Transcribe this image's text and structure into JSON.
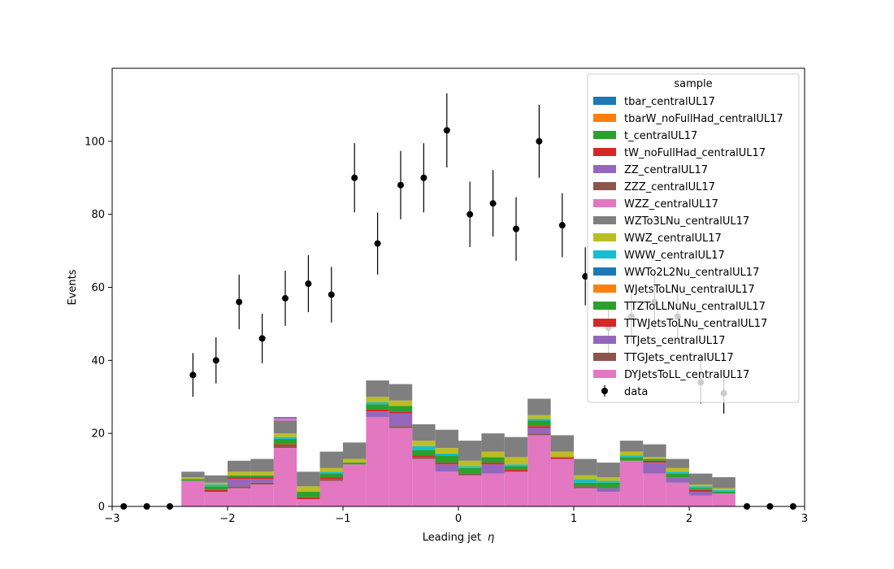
{
  "chart_data": {
    "type": "bar",
    "stacked": true,
    "xlabel": "Leading jet",
    "xlabel_symbol": "η",
    "ylabel": "Events",
    "xlim": [
      -3,
      3
    ],
    "ylim": [
      0,
      120
    ],
    "xticks": [
      -3,
      -2,
      -1,
      0,
      1,
      2,
      3
    ],
    "xtick_labels": [
      "−3",
      "−2",
      "−1",
      "0",
      "1",
      "2",
      "3"
    ],
    "yticks": [
      0,
      20,
      40,
      60,
      80,
      100
    ],
    "yticks_labels": [
      "0",
      "20",
      "40",
      "60",
      "80",
      "100"
    ],
    "grid": false,
    "legend": {
      "title": "sample",
      "placement": "top-right"
    },
    "bin_edges": [
      -3.0,
      -2.8,
      -2.6,
      -2.4,
      -2.2,
      -2.0,
      -1.8,
      -1.6,
      -1.4,
      -1.2,
      -1.0,
      -0.8,
      -0.6,
      -0.4,
      -0.2,
      0.0,
      0.2,
      0.4,
      0.6,
      0.8,
      1.0,
      1.2,
      1.4,
      1.6,
      1.8,
      2.0,
      2.2,
      2.4,
      2.6,
      2.8,
      3.0
    ],
    "series": [
      {
        "name": "DYJetsToLL_centralUL17",
        "color": "#e377c2",
        "values": [
          0,
          0,
          0,
          7,
          4,
          5,
          6,
          16,
          2,
          7,
          11.5,
          24.5,
          21.5,
          13,
          9.5,
          8.5,
          9,
          9.5,
          19.5,
          13,
          5,
          4,
          12.5,
          9,
          6.5,
          3,
          3.5,
          0,
          0,
          0
        ]
      },
      {
        "name": "TTGJets_centralUL17",
        "color": "#8c564b",
        "values": [
          0,
          0,
          0,
          0,
          0,
          0.5,
          0.5,
          0.5,
          0,
          0.5,
          0,
          0,
          0.5,
          0.5,
          0,
          0.5,
          0,
          0,
          0.5,
          0,
          0.5,
          0,
          0,
          0,
          0,
          0,
          0,
          0,
          0,
          0
        ]
      },
      {
        "name": "TTJets_centralUL17",
        "color": "#9467bd",
        "values": [
          0,
          0,
          0,
          0,
          0,
          2,
          1,
          0,
          0,
          0,
          0,
          1.5,
          3.5,
          0,
          2,
          0,
          2.5,
          0,
          1.5,
          0,
          0,
          1,
          0,
          3,
          1.5,
          1,
          0,
          0,
          0,
          0
        ]
      },
      {
        "name": "TTWJetsToLNu_centralUL17",
        "color": "#d62728",
        "values": [
          0,
          0,
          0,
          0,
          0.5,
          0.5,
          0.5,
          0.5,
          0.5,
          0.5,
          0,
          0.5,
          0.5,
          0.5,
          0.5,
          0,
          0.5,
          0.5,
          0.5,
          0.5,
          0,
          0,
          0,
          0.5,
          0,
          0.5,
          0,
          0,
          0,
          0
        ]
      },
      {
        "name": "TTZToLLNuNu_centralUL17",
        "color": "#2ca02c",
        "values": [
          0,
          0,
          0,
          0.5,
          1,
          0.5,
          0.5,
          1.5,
          1.5,
          1,
          0.5,
          1.5,
          1.5,
          1.5,
          2,
          1.5,
          1.5,
          1,
          1.5,
          0,
          1,
          1.5,
          1,
          0.5,
          1,
          0.5,
          0.5,
          0,
          0,
          0
        ]
      },
      {
        "name": "WJetsToLNu_centralUL17",
        "color": "#ff7f0e",
        "values": [
          0,
          0,
          0,
          0,
          0,
          0,
          0,
          0,
          0,
          0,
          0,
          0,
          0,
          0,
          0,
          0,
          0,
          0,
          0,
          0,
          0,
          0,
          0,
          0,
          0,
          0,
          0,
          0,
          0,
          0
        ]
      },
      {
        "name": "WWTo2L2Nu_centralUL17",
        "color": "#1f77b4",
        "values": [
          0,
          0,
          0,
          0,
          0,
          0,
          0,
          0,
          0,
          0,
          0,
          0,
          0,
          0,
          0,
          0,
          0,
          0,
          0,
          0,
          0,
          0,
          0,
          0,
          0,
          0,
          0,
          0,
          0,
          0
        ]
      },
      {
        "name": "WWW_centralUL17",
        "color": "#17becf",
        "values": [
          0,
          0,
          0,
          0,
          0.5,
          0,
          0,
          0.5,
          0,
          0.5,
          0,
          0.5,
          0,
          1,
          0.5,
          0.5,
          0,
          0.5,
          0.5,
          0,
          1,
          0.5,
          0.5,
          0,
          0.5,
          0.5,
          0.5,
          0,
          0,
          0
        ]
      },
      {
        "name": "WWZ_centralUL17",
        "color": "#bcbd22",
        "values": [
          0,
          0,
          0,
          0.5,
          0.5,
          1,
          1,
          1,
          1.5,
          1,
          1,
          1.5,
          1.5,
          1.5,
          1.5,
          1.5,
          1.5,
          2,
          1,
          1.5,
          1,
          1,
          1,
          0.5,
          1,
          0.5,
          0.5,
          0,
          0,
          0
        ]
      },
      {
        "name": "WZTo3LNu_centralUL17",
        "color": "#7f7f7f",
        "values": [
          0,
          0,
          0,
          1.5,
          2,
          3,
          3.5,
          3.5,
          4,
          4.5,
          4.5,
          4.5,
          4.5,
          4.5,
          5,
          5.5,
          5,
          5.5,
          4.5,
          4.5,
          4.5,
          4,
          3,
          3.5,
          2.5,
          3,
          3,
          0,
          0,
          0
        ]
      },
      {
        "name": "WZZ_centralUL17",
        "color": "#e377c2",
        "values": [
          0,
          0,
          0,
          0,
          0,
          0,
          0,
          0.5,
          0,
          0,
          0,
          0,
          0,
          0,
          0,
          0,
          0,
          0,
          0,
          0,
          0,
          0,
          0,
          0,
          0,
          0,
          0,
          0,
          0,
          0
        ]
      },
      {
        "name": "ZZZ_centralUL17",
        "color": "#8c564b",
        "values": [
          0,
          0,
          0,
          0,
          0,
          0,
          0,
          0,
          0,
          0,
          0,
          0,
          0,
          0,
          0,
          0,
          0,
          0,
          0,
          0,
          0,
          0,
          0,
          0,
          0,
          0,
          0,
          0,
          0,
          0
        ]
      },
      {
        "name": "ZZ_centralUL17",
        "color": "#9467bd",
        "values": [
          0,
          0,
          0,
          0,
          0,
          0,
          0,
          0.5,
          0,
          0,
          0,
          0,
          0,
          0,
          0,
          0,
          0,
          0,
          0,
          0,
          0,
          0,
          0,
          0,
          0,
          0,
          0,
          0,
          0,
          0
        ]
      },
      {
        "name": "tW_noFullHad_centralUL17",
        "color": "#d62728",
        "values": [
          0,
          0,
          0,
          0,
          0,
          0,
          0,
          0,
          0,
          0,
          0,
          0,
          0,
          0,
          0,
          0,
          0,
          0,
          0,
          0,
          0,
          0,
          0,
          0,
          0,
          0,
          0,
          0,
          0,
          0
        ]
      },
      {
        "name": "t_centralUL17",
        "color": "#2ca02c",
        "values": [
          0,
          0,
          0,
          0,
          0,
          0,
          0,
          0,
          0,
          0,
          0,
          0,
          0,
          0,
          0,
          0,
          0,
          0,
          0,
          0,
          0,
          0,
          0,
          0,
          0,
          0,
          0,
          0,
          0,
          0
        ]
      },
      {
        "name": "tbarW_noFullHad_centralUL17",
        "color": "#ff7f0e",
        "values": [
          0,
          0,
          0,
          0,
          0,
          0,
          0,
          0,
          0,
          0,
          0,
          0,
          0,
          0,
          0,
          0,
          0,
          0,
          0,
          0,
          0,
          0,
          0,
          0,
          0,
          0,
          0,
          0,
          0,
          0
        ]
      },
      {
        "name": "tbar_centralUL17",
        "color": "#1f77b4",
        "values": [
          0,
          0,
          0,
          0,
          0,
          0,
          0,
          0,
          0,
          0,
          0,
          0,
          0,
          0,
          0,
          0,
          0,
          0,
          0,
          0,
          0,
          0,
          0,
          0,
          0,
          0,
          0,
          0,
          0,
          0
        ]
      }
    ],
    "legend_order": [
      "tbar_centralUL17",
      "tbarW_noFullHad_centralUL17",
      "t_centralUL17",
      "tW_noFullHad_centralUL17",
      "ZZ_centralUL17",
      "ZZZ_centralUL17",
      "WZZ_centralUL17",
      "WZTo3LNu_centralUL17",
      "WWZ_centralUL17",
      "WWW_centralUL17",
      "WWTo2L2Nu_centralUL17",
      "WJetsToLNu_centralUL17",
      "TTZToLLNuNu_centralUL17",
      "TTWJetsToLNu_centralUL17",
      "TTJets_centralUL17",
      "TTGJets_centralUL17",
      "DYJetsToLL_centralUL17"
    ],
    "data": {
      "name": "data",
      "color": "#000000",
      "x": [
        -2.9,
        -2.7,
        -2.5,
        -2.3,
        -2.1,
        -1.9,
        -1.7,
        -1.5,
        -1.3,
        -1.1,
        -0.9,
        -0.7,
        -0.5,
        -0.3,
        -0.1,
        0.1,
        0.3,
        0.5,
        0.7,
        0.9,
        1.1,
        1.3,
        1.5,
        1.7,
        1.9,
        2.1,
        2.3,
        2.5,
        2.7,
        2.9
      ],
      "y": [
        0,
        0,
        0,
        36,
        40,
        56,
        46,
        57,
        61,
        58,
        90,
        72,
        88,
        90,
        103,
        80,
        83,
        76,
        100,
        77,
        63,
        49,
        52,
        56,
        52,
        34,
        31,
        0,
        0,
        0
      ]
    }
  }
}
